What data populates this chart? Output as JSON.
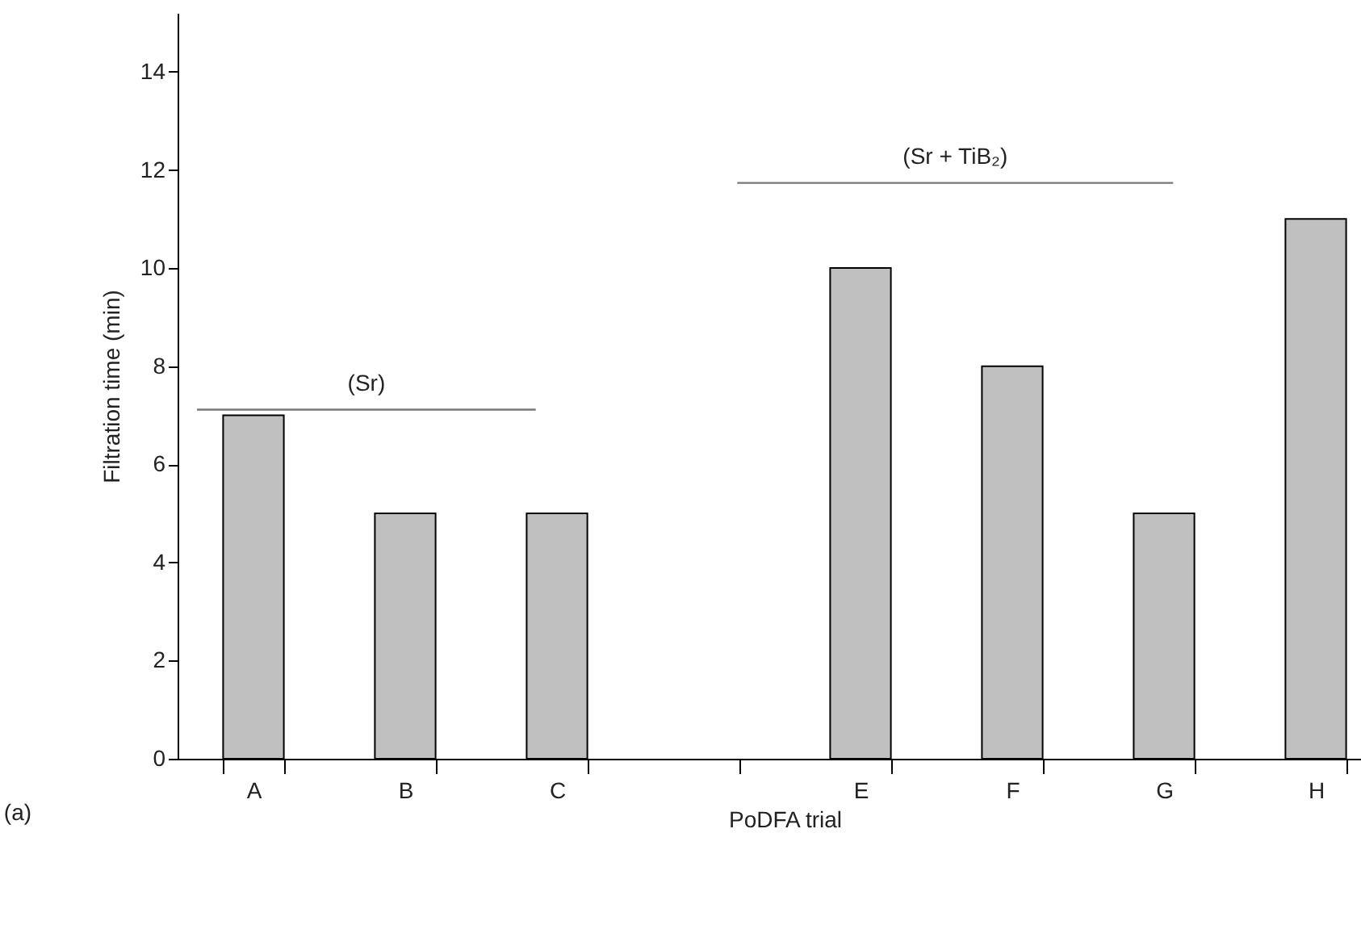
{
  "chart_data": {
    "type": "bar",
    "xlabel": "PoDFA trial",
    "ylabel": "Filtration time (min)",
    "categories": [
      "A",
      "B",
      "C",
      null,
      "E",
      "F",
      "G",
      "H"
    ],
    "values": [
      7,
      5,
      5,
      null,
      10,
      8,
      5,
      11
    ],
    "color": "#c0c0c0",
    "ylim": [
      0,
      15.2
    ],
    "yticks": [
      0,
      2,
      4,
      6,
      8,
      10,
      12,
      14
    ],
    "annotations": [
      "(Sr)",
      "(Sr + TiB₂)",
      "(a)"
    ]
  }
}
